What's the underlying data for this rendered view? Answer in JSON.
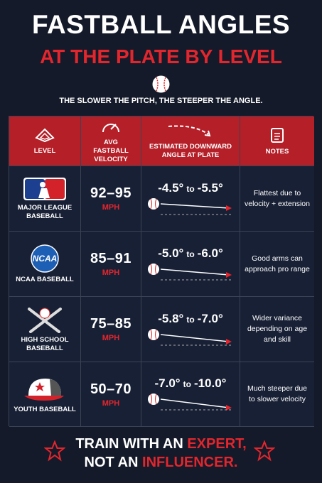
{
  "header": {
    "title": "FASTBALL ANGLES",
    "subtitle": "AT THE PLATE BY LEVEL",
    "tagline": "THE SLOWER THE PITCH, THE STEEPER THE ANGLE."
  },
  "table": {
    "columns": [
      "LEVEL",
      "AVG FASTBALL VELOCITY",
      "ESTIMATED DOWNWARD ANGLE AT PLATE",
      "NOTES"
    ],
    "rows": [
      {
        "level": "MAJOR LEAGUE BASEBALL",
        "velocity": "92–95",
        "unit": "MPH",
        "angle_from": "-4.5°",
        "to": "to",
        "angle_to": "-5.5°",
        "notes": "Flattest due to velocity + extension"
      },
      {
        "logo_text": "NCAA",
        "level": "NCAA BASEBALL",
        "velocity": "85–91",
        "unit": "MPH",
        "angle_from": "-5.0°",
        "to": "to",
        "angle_to": "-6.0°",
        "notes": "Good arms can approach pro range"
      },
      {
        "level": "HIGH SCHOOL BASEBALL",
        "velocity": "75–85",
        "unit": "MPH",
        "angle_from": "-5.8°",
        "to": "to",
        "angle_to": "-7.0°",
        "notes": "Wider variance depending on age and skill"
      },
      {
        "level": "YOUTH BASEBALL",
        "velocity": "50–70",
        "unit": "MPH",
        "angle_from": "-7.0°",
        "to": "to",
        "angle_to": "-10.0°",
        "notes": "Much steeper due to slower velocity"
      }
    ]
  },
  "footer": {
    "line1": "TRAIN WITH AN ",
    "line1_highlight": "EXPERT,",
    "line2": "NOT AN ",
    "line2_highlight": "INFLUENCER."
  }
}
